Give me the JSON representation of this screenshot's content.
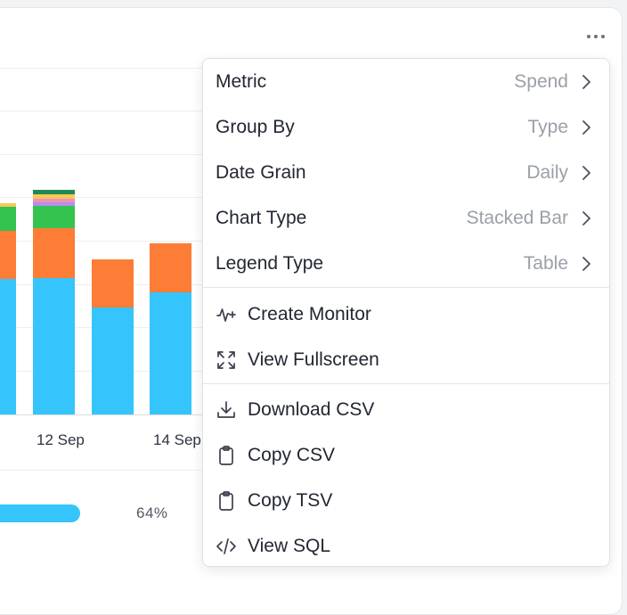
{
  "chart": {
    "x_tick_labels": [
      "12 Sep",
      "14 Sep"
    ],
    "series_colors": {
      "blue": "#35c5fc",
      "orange": "#fd7c36",
      "green": "#34c34f",
      "dark_green": "#1f8a52",
      "pink": "#f28fb3",
      "yellow": "#f5c95a",
      "violet": "#b48ef0"
    }
  },
  "progress": {
    "value": 64,
    "label": "64%",
    "color": "#35c5fc"
  },
  "menu": {
    "settings": [
      {
        "label": "Metric",
        "value": "Spend"
      },
      {
        "label": "Group By",
        "value": "Type"
      },
      {
        "label": "Date Grain",
        "value": "Daily"
      },
      {
        "label": "Chart Type",
        "value": "Stacked Bar"
      },
      {
        "label": "Legend Type",
        "value": "Table"
      }
    ],
    "actions_view": [
      {
        "label": "Create Monitor",
        "icon": "activity-plus-icon"
      },
      {
        "label": "View Fullscreen",
        "icon": "expand-icon"
      }
    ],
    "actions_export": [
      {
        "label": "Download CSV",
        "icon": "download-icon"
      },
      {
        "label": "Copy CSV",
        "icon": "clipboard-icon"
      },
      {
        "label": "Copy TSV",
        "icon": "clipboard-icon"
      },
      {
        "label": "View SQL",
        "icon": "code-icon"
      }
    ]
  },
  "more_button": {
    "icon": "more-horizontal-icon"
  }
}
